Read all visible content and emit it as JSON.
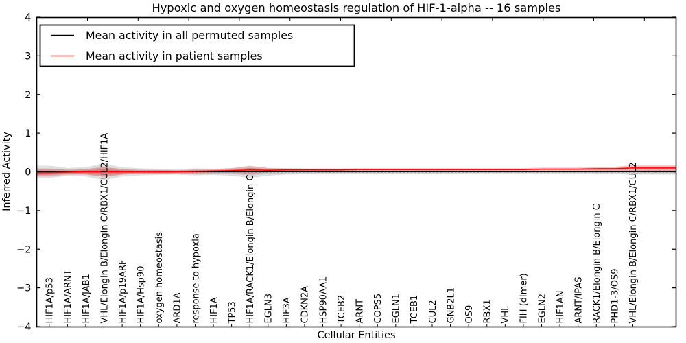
{
  "title": "Hypoxic and oxygen homeostasis regulation of HIF-1-alpha -- 16 samples",
  "legend": {
    "items": [
      {
        "label": "Mean activity in all permuted samples",
        "color": "#000000"
      },
      {
        "label": "Mean activity in patient samples",
        "color": "#ff0000"
      }
    ]
  },
  "chart_data": {
    "type": "line",
    "title": "Hypoxic and oxygen homeostasis regulation of HIF-1-alpha -- 16 samples",
    "xlabel": "Cellular Entities",
    "ylabel": "Inferred Activity",
    "ylim": [
      -4,
      4
    ],
    "yticks": [
      4,
      3,
      2,
      1,
      0,
      -1,
      -2,
      -3,
      -4
    ],
    "grid": false,
    "legend_position": "upper left",
    "zero_line_style": "dotted",
    "x_tick_label_rotation": 90,
    "categories": [
      "HIF1A/p53",
      "HIF1A/ARNT",
      "HIF1A/JAB1",
      "VHL/Elongin B/Elongin C/RBX1/CUL2/HIF1A",
      "HIF1A/p19ARF",
      "HIF1A/Hsp90",
      "oxygen homeostasis",
      "ARD1A",
      "response to hypoxia",
      "HIF1A",
      "TP53",
      "HIF1A/RACK1/Elongin B/Elongin C",
      "EGLN3",
      "HIF3A",
      "CDKN2A",
      "HSP90AA1",
      "TCEB2",
      "ARNT",
      "COPS5",
      "EGLN1",
      "TCEB1",
      "CUL2",
      "GNB2L1",
      "OS9",
      "RBX1",
      "VHL",
      "FIH (dimer)",
      "EGLN2",
      "HIF1AN",
      "ARNT/IPAS",
      "RACK1/Elongin B/Elongin C",
      "PHD1-3/OS9",
      "VHL/Elongin B/Elongin C/RBX1/CUL2"
    ],
    "series": [
      {
        "name": "Mean activity in all permuted samples",
        "color": "#000000",
        "values": [
          0,
          0,
          0,
          0,
          0,
          0,
          0,
          0,
          0,
          0,
          0,
          0,
          0,
          0,
          0,
          0,
          0,
          0,
          0,
          0,
          0,
          0,
          0,
          0,
          0,
          0,
          0,
          0,
          0,
          0,
          0,
          0,
          0
        ]
      },
      {
        "name": "Mean activity in patient samples",
        "color": "#ff0000",
        "values": [
          -0.02,
          -0.01,
          0,
          0,
          0,
          0,
          0,
          0,
          0.01,
          0.02,
          0.03,
          0.05,
          0.04,
          0.05,
          0.05,
          0.05,
          0.05,
          0.06,
          0.06,
          0.06,
          0.06,
          0.06,
          0.06,
          0.06,
          0.06,
          0.06,
          0.06,
          0.07,
          0.07,
          0.07,
          0.08,
          0.08,
          0.1
        ]
      }
    ],
    "bands": [
      {
        "name": "permuted samples envelope",
        "color": "#000000",
        "series": "Mean activity in all permuted samples",
        "halfwidths": [
          0.16,
          0.1,
          0.12,
          0.22,
          0.12,
          0.09,
          0.08,
          0.07,
          0.09,
          0.08,
          0.1,
          0.16,
          0.1,
          0.07,
          0.06,
          0.06,
          0.06,
          0.06,
          0.06,
          0.06,
          0.06,
          0.06,
          0.06,
          0.05,
          0.05,
          0.05,
          0.05,
          0.05,
          0.05,
          0.05,
          0.06,
          0.06,
          0.07
        ]
      },
      {
        "name": "patient samples envelope",
        "color": "#ff0000",
        "series": "Mean activity in patient samples",
        "halfwidths": [
          0.1,
          0.06,
          0.07,
          0.13,
          0.07,
          0.05,
          0.05,
          0.04,
          0.05,
          0.05,
          0.06,
          0.1,
          0.06,
          0.05,
          0.04,
          0.04,
          0.04,
          0.04,
          0.04,
          0.04,
          0.04,
          0.04,
          0.04,
          0.04,
          0.04,
          0.04,
          0.04,
          0.04,
          0.04,
          0.04,
          0.05,
          0.05,
          0.08
        ]
      }
    ]
  }
}
